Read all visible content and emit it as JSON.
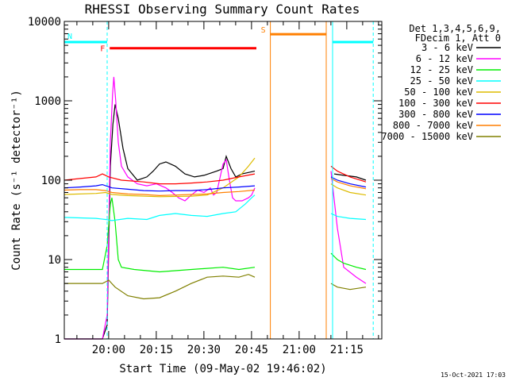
{
  "chart_data": {
    "type": "line",
    "title": "RHESSI Observing Summary Count Rates",
    "xlabel": "Start Time (09-May-02 19:46:02)",
    "ylabel": "Count Rate (s⁻¹ detector⁻¹)",
    "x_unit": "minutes after 19:46:02",
    "xlim": [
      0,
      100
    ],
    "ylim": [
      1,
      10000
    ],
    "y_scale": "log",
    "x_ticks": [
      {
        "pos": 13.97,
        "label": "20:00"
      },
      {
        "pos": 28.97,
        "label": "20:15"
      },
      {
        "pos": 43.97,
        "label": "20:30"
      },
      {
        "pos": 58.97,
        "label": "20:45"
      },
      {
        "pos": 73.97,
        "label": "21:00"
      },
      {
        "pos": 88.97,
        "label": "21:15"
      }
    ],
    "y_ticks": [
      {
        "pos": 10000,
        "label": "10000"
      },
      {
        "pos": 1000,
        "label": "1000"
      },
      {
        "pos": 100,
        "label": "100"
      },
      {
        "pos": 10,
        "label": "10"
      },
      {
        "pos": 1,
        "label": "1"
      }
    ],
    "grid": false,
    "legend_position": "right",
    "legend_header": [
      "Det 1,3,4,5,6,9,",
      "FDecim 1, Att 0"
    ],
    "footer": "15-Oct-2021 17:03",
    "series": [
      {
        "name": "3 - 6 keV",
        "color": "#000000",
        "segments": [
          [
            [
              0,
              1
            ],
            [
              12,
              1
            ],
            [
              13.5,
              1.5
            ],
            [
              14.5,
              150
            ],
            [
              15.3,
              500
            ],
            [
              16,
              900
            ],
            [
              17,
              600
            ],
            [
              18.5,
              250
            ],
            [
              20,
              140
            ],
            [
              23,
              100
            ],
            [
              26,
              110
            ],
            [
              28,
              130
            ],
            [
              30,
              160
            ],
            [
              32,
              170
            ],
            [
              35,
              150
            ],
            [
              38,
              120
            ],
            [
              41,
              110
            ],
            [
              44,
              115
            ],
            [
              48,
              130
            ],
            [
              50,
              140
            ],
            [
              51,
              200
            ],
            [
              52.5,
              140
            ],
            [
              54,
              110
            ],
            [
              56,
              120
            ],
            [
              58,
              125
            ],
            [
              60,
              130
            ]
          ],
          [
            [
              85,
              120
            ],
            [
              88,
              115
            ],
            [
              92,
              110
            ],
            [
              95,
              100
            ]
          ]
        ]
      },
      {
        "name": "6 - 12 keV",
        "color": "#ff00ff",
        "segments": [
          [
            [
              0,
              1
            ],
            [
              12,
              1
            ],
            [
              13.5,
              2
            ],
            [
              14.5,
              300
            ],
            [
              15.2,
              1200
            ],
            [
              15.6,
              2000
            ],
            [
              16.2,
              1000
            ],
            [
              17,
              300
            ],
            [
              18,
              150
            ],
            [
              20,
              110
            ],
            [
              23,
              90
            ],
            [
              26,
              85
            ],
            [
              29,
              90
            ],
            [
              32,
              80
            ],
            [
              34,
              70
            ],
            [
              36,
              60
            ],
            [
              38,
              55
            ],
            [
              40,
              65
            ],
            [
              42,
              75
            ],
            [
              44,
              70
            ],
            [
              46,
              80
            ],
            [
              47,
              65
            ],
            [
              48,
              70
            ],
            [
              50,
              160
            ],
            [
              51,
              180
            ],
            [
              52,
              100
            ],
            [
              53,
              60
            ],
            [
              54,
              55
            ],
            [
              56,
              55
            ],
            [
              58,
              60
            ],
            [
              59,
              65
            ],
            [
              60,
              80
            ]
          ],
          [
            [
              84,
              130
            ],
            [
              86,
              25
            ],
            [
              88,
              8
            ],
            [
              92,
              6
            ],
            [
              95,
              5
            ]
          ]
        ]
      },
      {
        "name": "12 - 25 keV",
        "color": "#00ee00",
        "segments": [
          [
            [
              0,
              7.5
            ],
            [
              12,
              7.5
            ],
            [
              13.5,
              15
            ],
            [
              14.5,
              50
            ],
            [
              15,
              60
            ],
            [
              16,
              30
            ],
            [
              17,
              10
            ],
            [
              18,
              8
            ],
            [
              22,
              7.5
            ],
            [
              30,
              7
            ],
            [
              40,
              7.5
            ],
            [
              50,
              8
            ],
            [
              55,
              7.5
            ],
            [
              60,
              8
            ]
          ],
          [
            [
              84,
              12
            ],
            [
              86,
              10
            ],
            [
              88,
              9
            ],
            [
              92,
              8
            ],
            [
              95,
              7.5
            ]
          ]
        ]
      },
      {
        "name": "25 - 50 keV",
        "color": "#00ffff",
        "segments": [
          [
            [
              0,
              34
            ],
            [
              10,
              33
            ],
            [
              13,
              32
            ],
            [
              15,
              31
            ],
            [
              20,
              33
            ],
            [
              26,
              32
            ],
            [
              30,
              36
            ],
            [
              35,
              38
            ],
            [
              40,
              36
            ],
            [
              45,
              35
            ],
            [
              50,
              38
            ],
            [
              54,
              40
            ],
            [
              57,
              50
            ],
            [
              59,
              60
            ],
            [
              60,
              65
            ]
          ],
          [
            [
              84,
              38
            ],
            [
              86,
              35
            ],
            [
              90,
              33
            ],
            [
              95,
              32
            ]
          ]
        ]
      },
      {
        "name": "50 - 100 keV",
        "color": "#ddbb00",
        "segments": [
          [
            [
              0,
              66
            ],
            [
              10,
              68
            ],
            [
              13,
              70
            ],
            [
              15,
              66
            ],
            [
              20,
              64
            ],
            [
              30,
              62
            ],
            [
              40,
              63
            ],
            [
              45,
              65
            ],
            [
              50,
              80
            ],
            [
              55,
              110
            ],
            [
              58,
              150
            ],
            [
              60,
              190
            ]
          ],
          [
            [
              84,
              90
            ],
            [
              86,
              80
            ],
            [
              90,
              70
            ],
            [
              95,
              65
            ]
          ]
        ]
      },
      {
        "name": "100 - 300 keV",
        "color": "#ff0000",
        "segments": [
          [
            [
              0,
              100
            ],
            [
              5,
              105
            ],
            [
              10,
              110
            ],
            [
              12,
              120
            ],
            [
              14,
              110
            ],
            [
              18,
              100
            ],
            [
              25,
              95
            ],
            [
              30,
              90
            ],
            [
              35,
              90
            ],
            [
              40,
              92
            ],
            [
              45,
              95
            ],
            [
              50,
              100
            ],
            [
              55,
              110
            ],
            [
              60,
              120
            ]
          ],
          [
            [
              84,
              150
            ],
            [
              86,
              130
            ],
            [
              90,
              110
            ],
            [
              95,
              95
            ]
          ]
        ]
      },
      {
        "name": "300 - 800 keV",
        "color": "#0000ff",
        "segments": [
          [
            [
              0,
              80
            ],
            [
              5,
              82
            ],
            [
              10,
              85
            ],
            [
              12,
              88
            ],
            [
              15,
              80
            ],
            [
              20,
              77
            ],
            [
              25,
              74
            ],
            [
              30,
              73
            ],
            [
              35,
              74
            ],
            [
              40,
              74
            ],
            [
              45,
              76
            ],
            [
              50,
              80
            ],
            [
              55,
              82
            ],
            [
              60,
              85
            ]
          ],
          [
            [
              84,
              110
            ],
            [
              86,
              100
            ],
            [
              90,
              90
            ],
            [
              95,
              82
            ]
          ]
        ]
      },
      {
        "name": "800 - 7000 keV",
        "color": "#ff7f00",
        "segments": [
          [
            [
              0,
              75
            ],
            [
              5,
              76
            ],
            [
              10,
              76
            ],
            [
              13,
              74
            ],
            [
              15,
              70
            ],
            [
              20,
              67
            ],
            [
              25,
              66
            ],
            [
              30,
              64
            ],
            [
              35,
              65
            ],
            [
              40,
              66
            ],
            [
              45,
              67
            ],
            [
              50,
              70
            ],
            [
              55,
              72
            ],
            [
              60,
              75
            ]
          ],
          [
            [
              84,
              105
            ],
            [
              86,
              95
            ],
            [
              90,
              85
            ],
            [
              95,
              78
            ]
          ]
        ]
      },
      {
        "name": "7000 - 15000 keV",
        "color": "#808000",
        "segments": [
          [
            [
              0,
              5
            ],
            [
              10,
              5
            ],
            [
              12,
              5
            ],
            [
              14,
              5.5
            ],
            [
              16,
              4.5
            ],
            [
              20,
              3.5
            ],
            [
              25,
              3.2
            ],
            [
              30,
              3.3
            ],
            [
              35,
              4
            ],
            [
              40,
              5
            ],
            [
              45,
              6
            ],
            [
              50,
              6.2
            ],
            [
              55,
              6
            ],
            [
              58,
              6.5
            ],
            [
              60,
              6
            ]
          ],
          [
            [
              84,
              5
            ],
            [
              86,
              4.5
            ],
            [
              90,
              4.2
            ],
            [
              95,
              4.5
            ]
          ]
        ]
      }
    ],
    "flags": [
      {
        "label": "N",
        "color": "#00ffff",
        "spans": [
          [
            0,
            13.5
          ],
          [
            84.5,
            97.3
          ]
        ],
        "level": 5500,
        "verticals": [
          [
            0,
            13.5
          ],
          [
            84.5,
            97.3
          ]
        ]
      },
      {
        "label": "F",
        "color": "#ff0000",
        "spans": [
          [
            14.3,
            60.5
          ]
        ],
        "level": 4600,
        "verticals": []
      },
      {
        "label": "S",
        "color": "#ff7f00",
        "spans": [
          [
            64.9,
            82.5
          ]
        ],
        "level": 6900,
        "verticals": [
          [
            64.9
          ],
          [
            82.5
          ]
        ]
      }
    ]
  }
}
